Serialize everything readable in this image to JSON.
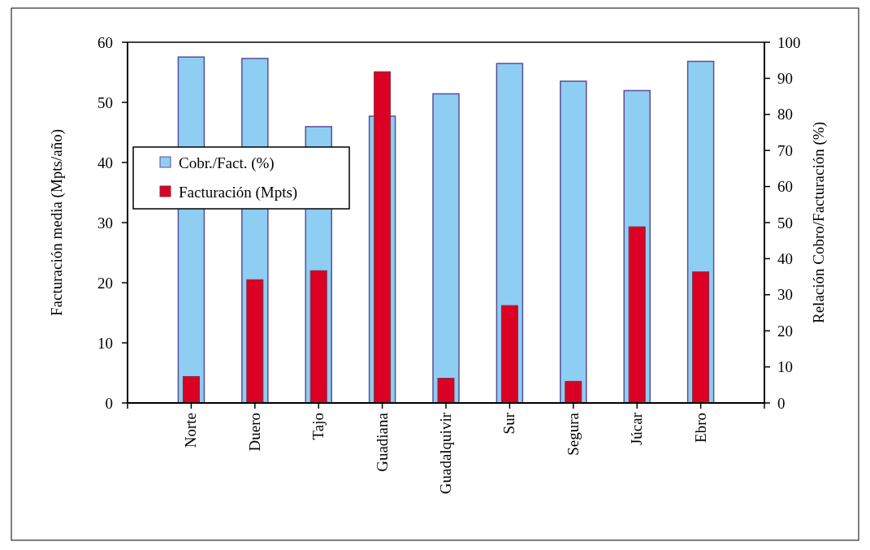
{
  "chart_data": {
    "type": "bar",
    "categories": [
      "Norte",
      "Duero",
      "Tajo",
      "Guadiana",
      "Guadalquivir",
      "Sur",
      "Segura",
      "Júcar",
      "Ebro"
    ],
    "series": [
      {
        "name": "Cobr./Fact. (%)",
        "color": "#8ecef3",
        "axis": "y2",
        "values": [
          95.9,
          95.5,
          76.6,
          79.5,
          85.7,
          94.1,
          89.2,
          86.6,
          94.7
        ]
      },
      {
        "name": "Facturación (Mpts)",
        "color": "#dc0024",
        "values": [
          4.4,
          20.5,
          22.0,
          55.1,
          4.1,
          16.2,
          3.6,
          29.3,
          21.8
        ]
      }
    ],
    "ylabel": "Facturación media (Mpts/año)",
    "y2label": "Relación Cobro/Facturación (%)",
    "ylim": [
      0,
      60
    ],
    "yticks": [
      0,
      10,
      20,
      30,
      40,
      50,
      60
    ],
    "y2lim": [
      0,
      100
    ],
    "y2ticks": [
      0,
      10,
      20,
      30,
      40,
      50,
      60,
      70,
      80,
      90,
      100
    ],
    "legend": "top left",
    "grid": false
  }
}
